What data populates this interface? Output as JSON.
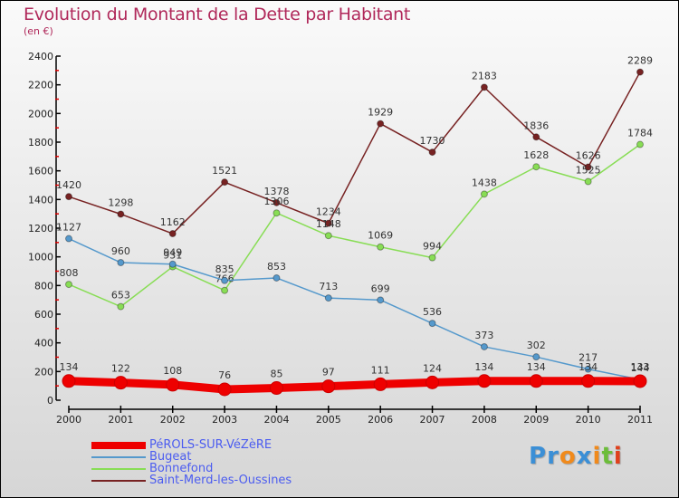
{
  "chart_data": {
    "type": "line",
    "title": "Evolution du Montant de la Dette par Habitant",
    "subtitle": "(en €)",
    "xlabel": "",
    "ylabel": "",
    "x": [
      "2000",
      "2001",
      "2002",
      "2003",
      "2004",
      "2005",
      "2006",
      "2007",
      "2008",
      "2009",
      "2010",
      "2011"
    ],
    "ylim": [
      0,
      2400
    ],
    "yticks": [
      0,
      200,
      400,
      600,
      800,
      1000,
      1200,
      1400,
      1600,
      1800,
      2000,
      2200,
      2400
    ],
    "grid": false,
    "legend_position": "bottom-left",
    "series": [
      {
        "name": "PéROLS-SUR-VéZèRE",
        "color": "#ee0000",
        "highlight": true,
        "values": [
          134,
          122,
          108,
          76,
          85,
          97,
          111,
          124,
          134,
          134,
          134,
          133
        ]
      },
      {
        "name": "Bugeat",
        "color": "#5599cc",
        "highlight": false,
        "values": [
          1127,
          960,
          949,
          835,
          853,
          713,
          699,
          536,
          373,
          302,
          217,
          144
        ]
      },
      {
        "name": "Bonnefond",
        "color": "#88dd55",
        "highlight": false,
        "values": [
          808,
          653,
          931,
          766,
          1306,
          1148,
          1069,
          994,
          1438,
          1628,
          1525,
          1784
        ]
      },
      {
        "name": "Saint-Merd-les-Oussines",
        "color": "#772222",
        "highlight": false,
        "values": [
          1420,
          1298,
          1162,
          1521,
          1378,
          1234,
          1929,
          1730,
          2183,
          1836,
          1626,
          2289
        ]
      }
    ]
  },
  "logo": {
    "letters": [
      {
        "ch": "P",
        "color": "#3b8fd6"
      },
      {
        "ch": "r",
        "color": "#3b8fd6"
      },
      {
        "ch": "o",
        "color": "#f08a1c"
      },
      {
        "ch": "x",
        "color": "#3b8fd6"
      },
      {
        "ch": "i",
        "color": "#f08a1c"
      },
      {
        "ch": "t",
        "color": "#6cbd3a"
      },
      {
        "ch": "i",
        "color": "#e0401c"
      }
    ]
  }
}
